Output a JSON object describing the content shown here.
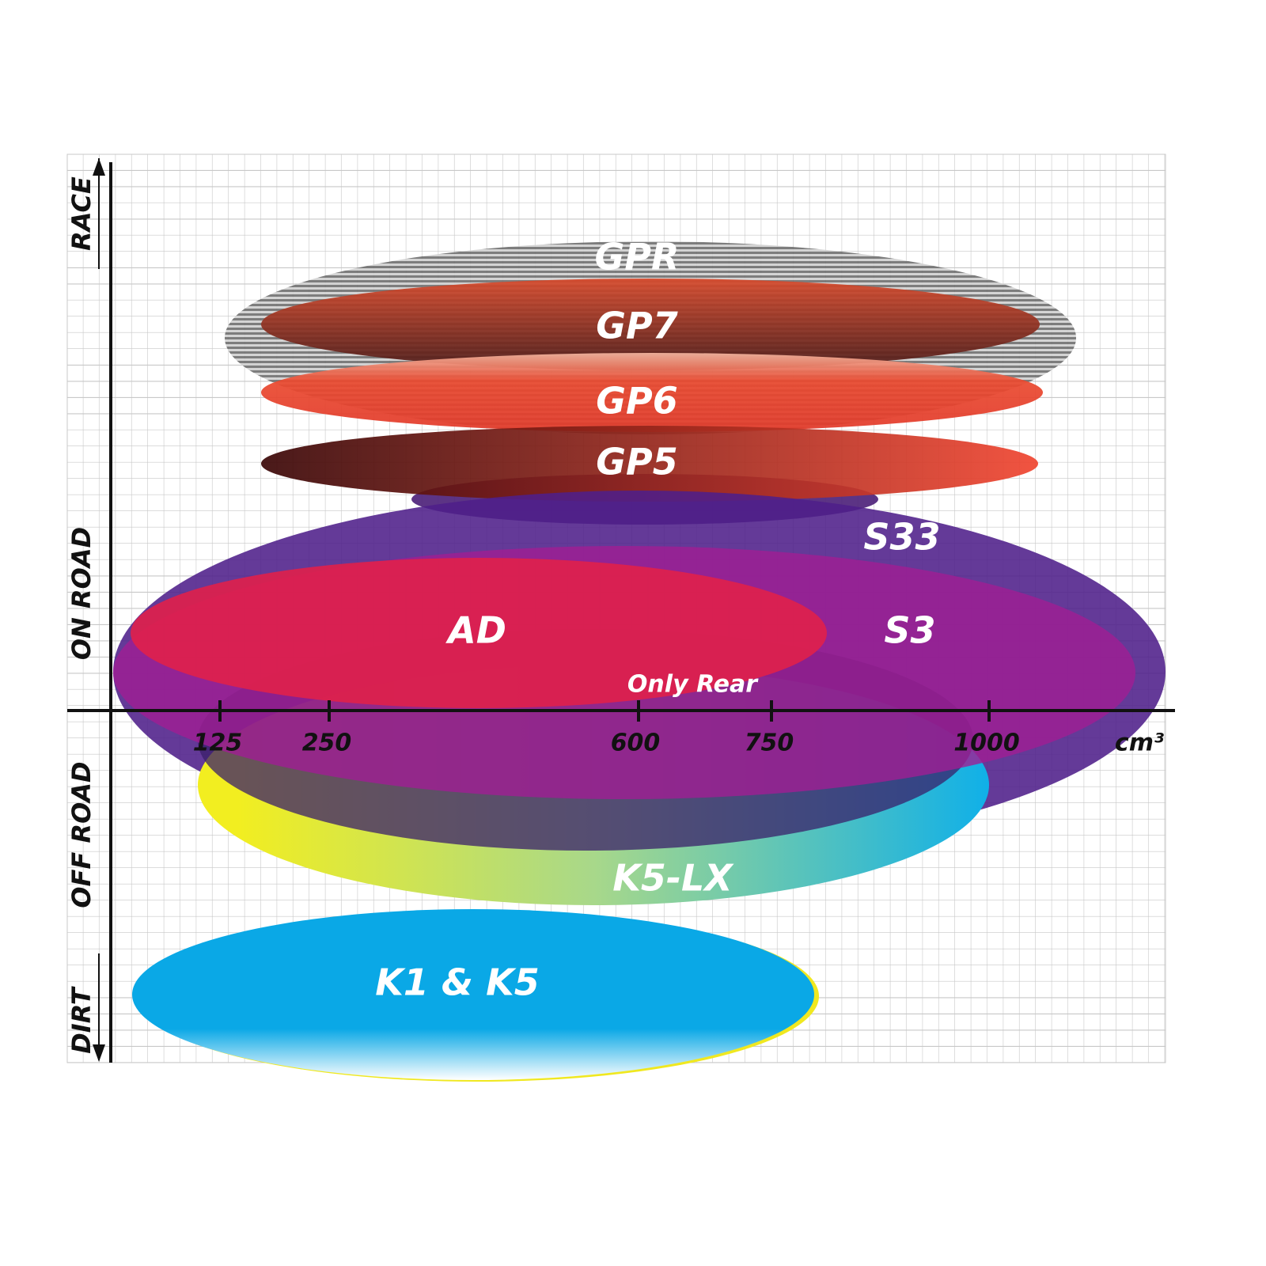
{
  "y_axis": {
    "labels": [
      "RACE",
      "ON ROAD",
      "OFF ROAD",
      "DIRT"
    ]
  },
  "x_axis": {
    "ticks": [
      "125",
      "250",
      "600",
      "750",
      "1000"
    ],
    "unit": "cm³"
  },
  "products": [
    {
      "label": "GPR"
    },
    {
      "label": "GP7"
    },
    {
      "label": "GP6"
    },
    {
      "label": "GP5"
    },
    {
      "label": "S33"
    },
    {
      "label": "S3"
    },
    {
      "label": "AD"
    },
    {
      "label": "Only Rear"
    },
    {
      "label": "K5-LX"
    },
    {
      "label": "K1 & K5"
    }
  ]
}
